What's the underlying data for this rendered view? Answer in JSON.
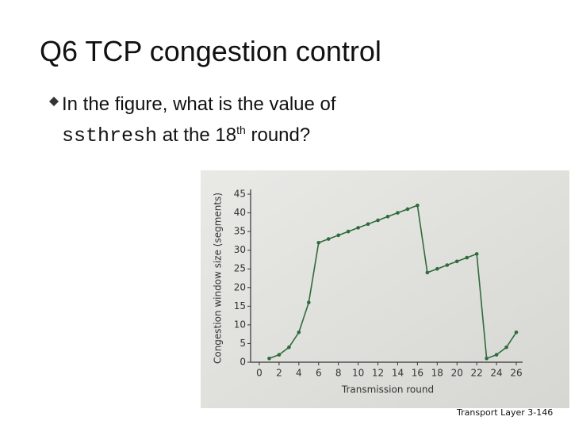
{
  "slide": {
    "title": "Q6 TCP congestion control",
    "bullet": {
      "text_before": "In the figure, what is the value of",
      "code": "ssthresh",
      "text_mid": "at the 18",
      "superscript": "th",
      "text_after": "round?"
    },
    "footer": {
      "label": "Transport Layer",
      "page": "3-146"
    }
  },
  "chart_data": {
    "type": "line",
    "x_label": "Transmission round",
    "y_label": "Congestion window size (segments)",
    "x": [
      1,
      2,
      3,
      4,
      5,
      6,
      7,
      8,
      9,
      10,
      11,
      12,
      13,
      14,
      15,
      16,
      17,
      18,
      19,
      20,
      21,
      22,
      23,
      24,
      25,
      26
    ],
    "series": [
      {
        "color": "#2f6b3c",
        "values": [
          1,
          2,
          4,
          8,
          16,
          32,
          33,
          34,
          35,
          36,
          37,
          38,
          39,
          40,
          41,
          42,
          24,
          25,
          26,
          27,
          28,
          29,
          1,
          2,
          4,
          8
        ]
      }
    ],
    "xlim": [
      0,
      26
    ],
    "xticks": [
      0,
      2,
      4,
      6,
      8,
      10,
      12,
      14,
      16,
      18,
      20,
      22,
      24,
      26
    ],
    "ylim": [
      0,
      45
    ],
    "yticks": [
      0,
      5,
      10,
      15,
      20,
      25,
      30,
      35,
      40,
      45
    ]
  }
}
